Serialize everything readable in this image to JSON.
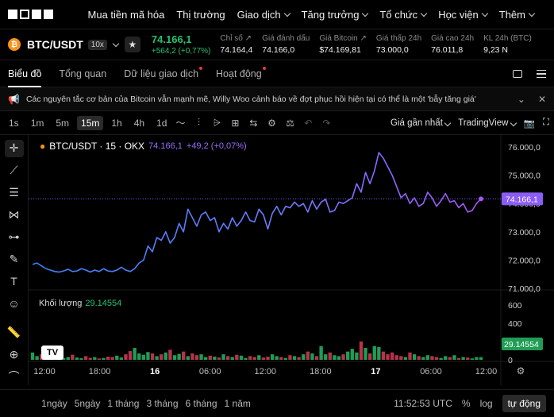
{
  "nav": {
    "items": [
      {
        "label": "Mua tiền mã hóa",
        "dropdown": false
      },
      {
        "label": "Thị trường",
        "dropdown": false
      },
      {
        "label": "Giao dịch",
        "dropdown": true
      },
      {
        "label": "Tăng trưởng",
        "dropdown": true
      },
      {
        "label": "Tổ chức",
        "dropdown": true
      },
      {
        "label": "Học viện",
        "dropdown": true
      },
      {
        "label": "Thêm",
        "dropdown": true
      }
    ]
  },
  "ticker": {
    "coin_symbol": "₿",
    "pair": "BTC/USDT",
    "leverage": "10x",
    "last_price": "74.166,1",
    "change": "+564,2 (+0,77%)",
    "stats": [
      {
        "label": "Chỉ số",
        "value": "74.164,4",
        "link": true
      },
      {
        "label": "Giá đánh dấu",
        "value": "74.166,0",
        "link": false
      },
      {
        "label": "Giá Bitcoin",
        "value": "$74.169,81",
        "link": true
      },
      {
        "label": "Giá thấp 24h",
        "value": "73.000,0",
        "link": false
      },
      {
        "label": "Giá cao 24h",
        "value": "76.011,8",
        "link": false
      },
      {
        "label": "KL 24h (BTC)",
        "value": "9,23 N",
        "link": false
      }
    ]
  },
  "tabs": [
    {
      "label": "Biểu đồ",
      "active": true,
      "dot": false
    },
    {
      "label": "Tổng quan",
      "active": false,
      "dot": false
    },
    {
      "label": "Dữ liệu giao dịch",
      "active": false,
      "dot": true
    },
    {
      "label": "Hoạt động",
      "active": false,
      "dot": true
    }
  ],
  "announcement": {
    "text": "Các nguyên tắc cơ bản của Bitcoin vẫn mạnh mẽ, Willy Woo cảnh báo về đợt phục hồi hiện tại có thể là một 'bẫy tăng giá'"
  },
  "toolbar": {
    "timeframes": [
      "1s",
      "1m",
      "5m",
      "15m",
      "1h",
      "4h",
      "1d"
    ],
    "active_timeframe": "15m",
    "price_type": "Giá gần nhất",
    "chart_source": "TradingView"
  },
  "chart_data": {
    "type": "line",
    "legend": {
      "symbol": "BTC/USDT · 15 · OKX",
      "price": "74.166,1",
      "change": "+49,2 (+0,07%)"
    },
    "current_price_label": "74.166,1",
    "y_ticks": [
      "76.000,0",
      "75.000,0",
      "74.000,0",
      "73.000,0",
      "72.000,0",
      "71.000,0"
    ],
    "y_tick_values": [
      76000,
      75000,
      74000,
      73000,
      72000,
      71000
    ],
    "ylim": [
      70950,
      76250
    ],
    "x_ticks": [
      "12:00",
      "18:00",
      "16",
      "06:00",
      "12:00",
      "18:00",
      "17",
      "06:00",
      "12:00"
    ],
    "x_tick_bold": [
      false,
      false,
      true,
      false,
      false,
      false,
      true,
      false,
      false
    ],
    "price_series": [
      71850,
      71900,
      71800,
      71700,
      71650,
      71600,
      71580,
      71620,
      71680,
      71600,
      71620,
      71700,
      71650,
      71580,
      71650,
      71600,
      71700,
      71620,
      71600,
      71650,
      71750,
      71650,
      71600,
      71700,
      71900,
      72000,
      72500,
      72300,
      72800,
      72700,
      73000,
      72600,
      72800,
      73300,
      73000,
      73800,
      73500,
      73200,
      73600,
      73700,
      73400,
      73500,
      73000,
      73300,
      73100,
      73500,
      73200,
      73400,
      73700,
      73400,
      73350,
      73800,
      73600,
      73100,
      73650,
      73900,
      73600,
      73900,
      73850,
      74050,
      73900,
      74000,
      73700,
      74100,
      73800,
      74050,
      74150,
      73700,
      73750,
      74050,
      74000,
      74100,
      74200,
      74700,
      74400,
      75100,
      74700,
      75150,
      75800,
      75600,
      75300,
      75000,
      74600,
      74200,
      74350,
      74000,
      74200,
      73900,
      74000,
      74400,
      74200,
      73900,
      74100,
      74350,
      74050,
      74100,
      73850,
      74000,
      73700,
      73750,
      74000,
      74166.1
    ],
    "volume": {
      "label": "Khối lượng",
      "value": "29.14554",
      "y_ticks": [
        "600",
        "400",
        "200",
        "0"
      ],
      "y_tick_values": [
        600,
        400,
        200,
        0
      ],
      "ylim": [
        0,
        720
      ],
      "bars": [
        80,
        40,
        60,
        120,
        50,
        30,
        45,
        20,
        30,
        55,
        25,
        18,
        40,
        22,
        30,
        15,
        20,
        35,
        30,
        45,
        25,
        60,
        95,
        130,
        70,
        55,
        85,
        70,
        40,
        60,
        80,
        110,
        50,
        65,
        90,
        40,
        70,
        50,
        60,
        30,
        45,
        35,
        25,
        60,
        40,
        30,
        55,
        45,
        20,
        40,
        30,
        50,
        25,
        35,
        60,
        40,
        30,
        20,
        50,
        40,
        30,
        60,
        90,
        70,
        40,
        150,
        60,
        80,
        50,
        40,
        60,
        90,
        120,
        80,
        200,
        130,
        70,
        150,
        140,
        90,
        60,
        80,
        50,
        40,
        30,
        80,
        60,
        40,
        30,
        50,
        40,
        30,
        20,
        40,
        30,
        50,
        20,
        30,
        25,
        15,
        30,
        29.15
      ],
      "last_label": "29.14554"
    }
  },
  "ranges": {
    "items": [
      "1ngày",
      "5ngày",
      "1 tháng",
      "3 tháng",
      "6 tháng",
      "1 năm"
    ],
    "time": "11:52:53 UTC",
    "percent": "%",
    "log": "log",
    "auto": "tự động"
  }
}
